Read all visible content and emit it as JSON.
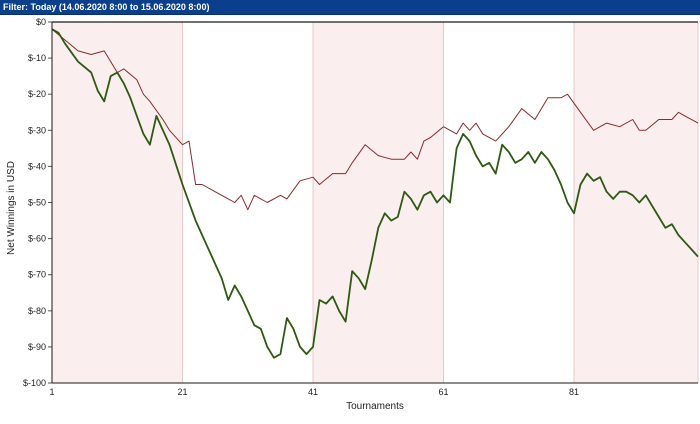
{
  "filter_bar": {
    "text": "Filter: Today (14.06.2020 8:00 to 15.06.2020 8:00)"
  },
  "colors": {
    "header_bg": "#0b3f8c",
    "band_pink": "#fbeeee",
    "grid": "#e8c8c8",
    "series_dark": "#2c5a12",
    "series_red": "#8b2a2a"
  },
  "chart_data": {
    "type": "line",
    "xlabel": "Tournaments",
    "ylabel": "Net Winnings in USD",
    "xlim": [
      1,
      100
    ],
    "ylim": [
      -100,
      0
    ],
    "x_ticks": [
      1,
      21,
      41,
      61,
      81
    ],
    "x_tick_labels": [
      "1",
      "21",
      "41",
      "61",
      "81"
    ],
    "y_ticks": [
      0,
      -10,
      -20,
      -30,
      -40,
      -50,
      -60,
      -70,
      -80,
      -90,
      -100
    ],
    "y_tick_labels": [
      "$0",
      "$-10",
      "$-20",
      "$-30",
      "$-40",
      "$-50",
      "$-60",
      "$-70",
      "$-80",
      "$-90",
      "$-100"
    ],
    "shaded_bands": [
      [
        1,
        21
      ],
      [
        41,
        61
      ],
      [
        81,
        100
      ]
    ],
    "grid": true,
    "series": [
      {
        "color": "#8b2a2a",
        "width": 1,
        "x": [
          1,
          3,
          5,
          7,
          9,
          11,
          12,
          14,
          15,
          16,
          18,
          19,
          21,
          22,
          23,
          24,
          26,
          28,
          29,
          30,
          31,
          32,
          34,
          36,
          37,
          39,
          41,
          42,
          44,
          46,
          47,
          49,
          51,
          53,
          55,
          56,
          57,
          58,
          59,
          61,
          63,
          64,
          65,
          66,
          67,
          69,
          71,
          73,
          75,
          77,
          79,
          80,
          82,
          84,
          86,
          88,
          90,
          91,
          92,
          94,
          96,
          97,
          98,
          100
        ],
        "y": [
          -2,
          -5,
          -8,
          -9,
          -8,
          -14,
          -13,
          -16,
          -20,
          -22,
          -27,
          -30,
          -34,
          -33,
          -45,
          -45,
          -47,
          -49,
          -50,
          -48,
          -52,
          -48,
          -50,
          -48,
          -49,
          -44,
          -43,
          -45,
          -42,
          -42,
          -39,
          -34,
          -37,
          -38,
          -38,
          -36,
          -38,
          -33,
          -32,
          -29,
          -31,
          -28,
          -30,
          -28,
          -31,
          -33,
          -29,
          -24,
          -27,
          -21,
          -21,
          -20,
          -25,
          -30,
          -28,
          -29,
          -27,
          -30,
          -30,
          -27,
          -27,
          -25,
          -26,
          -28
        ]
      },
      {
        "color": "#2c5a12",
        "width": 1.8,
        "x": [
          1,
          2,
          3,
          5,
          7,
          8,
          9,
          10,
          11,
          12,
          13,
          14,
          15,
          16,
          17,
          18,
          19,
          21,
          23,
          25,
          27,
          28,
          29,
          30,
          31,
          32,
          33,
          34,
          35,
          36,
          37,
          38,
          39,
          40,
          41,
          42,
          43,
          44,
          45,
          46,
          47,
          48,
          49,
          50,
          51,
          52,
          53,
          54,
          55,
          56,
          57,
          58,
          59,
          60,
          61,
          62,
          63,
          64,
          65,
          66,
          67,
          68,
          69,
          70,
          71,
          72,
          73,
          74,
          75,
          76,
          77,
          78,
          79,
          80,
          81,
          82,
          83,
          84,
          85,
          86,
          87,
          88,
          89,
          90,
          91,
          92,
          93,
          94,
          95,
          96,
          97,
          98,
          99,
          100
        ],
        "y": [
          -2,
          -3,
          -6,
          -11,
          -14,
          -19,
          -22,
          -15,
          -14,
          -17,
          -21,
          -26,
          -31,
          -34,
          -26,
          -30,
          -34,
          -45,
          -55,
          -63,
          -71,
          -77,
          -73,
          -76,
          -80,
          -84,
          -85,
          -90,
          -93,
          -92,
          -82,
          -85,
          -90,
          -92,
          -90,
          -77,
          -78,
          -76,
          -80,
          -83,
          -69,
          -71,
          -74,
          -66,
          -57,
          -53,
          -55,
          -54,
          -47,
          -49,
          -52,
          -48,
          -47,
          -50,
          -48,
          -50,
          -35,
          -31,
          -33,
          -37,
          -40,
          -39,
          -42,
          -34,
          -36,
          -39,
          -38,
          -36,
          -39,
          -36,
          -38,
          -41,
          -45,
          -50,
          -53,
          -45,
          -42,
          -44,
          -43,
          -47,
          -49,
          -47,
          -47,
          -48,
          -50,
          -48,
          -51,
          -54,
          -57,
          -56,
          -59,
          -61,
          -63,
          -65
        ]
      }
    ]
  }
}
